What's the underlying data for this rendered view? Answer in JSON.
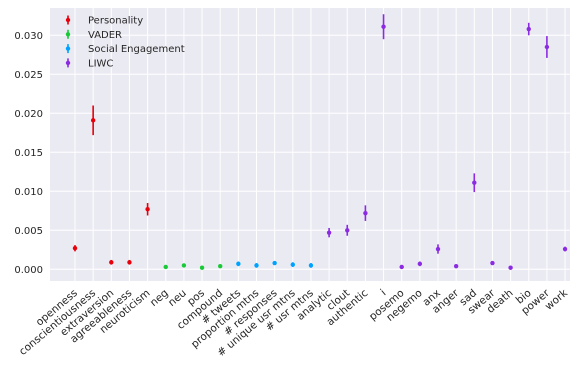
{
  "chart_data": {
    "type": "scatter",
    "title": "",
    "xlabel": "",
    "ylabel": "",
    "ylim": [
      -0.0015,
      0.0335
    ],
    "yticks": [
      "0.000",
      "0.005",
      "0.010",
      "0.015",
      "0.020",
      "0.025",
      "0.030"
    ],
    "grid": true,
    "legend_position": "top-left",
    "categories": [
      "openness",
      "conscientiousness",
      "extraversion",
      "agreeableness",
      "neuroticism",
      "neg",
      "neu",
      "pos",
      "compound",
      "# tweets",
      "proportion mtns",
      "# responses",
      "# unique usr mtns",
      "# usr mtns",
      "analytic",
      "clout",
      "authentic",
      "i",
      "posemo",
      "negemo",
      "anx",
      "anger",
      "sad",
      "swear",
      "death",
      "bio",
      "power",
      "work"
    ],
    "series": [
      {
        "name": "Personality",
        "color": "#e8000b",
        "points": [
          {
            "x": "openness",
            "y": 0.0027,
            "err": 0.0004
          },
          {
            "x": "conscientiousness",
            "y": 0.0191,
            "err": 0.0019
          },
          {
            "x": "extraversion",
            "y": 0.0009,
            "err": 0.0003
          },
          {
            "x": "agreeableness",
            "y": 0.0009,
            "err": 0.0003
          },
          {
            "x": "neuroticism",
            "y": 0.0077,
            "err": 0.0008
          }
        ]
      },
      {
        "name": "VADER",
        "color": "#1ac938",
        "points": [
          {
            "x": "neg",
            "y": 0.0003,
            "err": 0.0002
          },
          {
            "x": "neu",
            "y": 0.0005,
            "err": 0.0002
          },
          {
            "x": "pos",
            "y": 0.0002,
            "err": 0.0001
          },
          {
            "x": "compound",
            "y": 0.0004,
            "err": 0.0002
          }
        ]
      },
      {
        "name": "Social Engagement",
        "color": "#00a2ff",
        "points": [
          {
            "x": "# tweets",
            "y": 0.0007,
            "err": 0.0003
          },
          {
            "x": "proportion mtns",
            "y": 0.0005,
            "err": 0.0003
          },
          {
            "x": "# responses",
            "y": 0.0008,
            "err": 0.0002
          },
          {
            "x": "# unique usr mtns",
            "y": 0.0006,
            "err": 0.0003
          },
          {
            "x": "# usr mtns",
            "y": 0.0005,
            "err": 0.0003
          }
        ]
      },
      {
        "name": "LIWC",
        "color": "#8b2be2",
        "points": [
          {
            "x": "analytic",
            "y": 0.0047,
            "err": 0.0006
          },
          {
            "x": "clout",
            "y": 0.005,
            "err": 0.0007
          },
          {
            "x": "authentic",
            "y": 0.0072,
            "err": 0.001
          },
          {
            "x": "i",
            "y": 0.0311,
            "err": 0.0016
          },
          {
            "x": "posemo",
            "y": 0.0003,
            "err": 0.0001
          },
          {
            "x": "negemo",
            "y": 0.0007,
            "err": 0.0003
          },
          {
            "x": "anx",
            "y": 0.0026,
            "err": 0.0006
          },
          {
            "x": "anger",
            "y": 0.0004,
            "err": 0.0001
          },
          {
            "x": "sad",
            "y": 0.0111,
            "err": 0.0012
          },
          {
            "x": "swear",
            "y": 0.0008,
            "err": 0.0002
          },
          {
            "x": "death",
            "y": 0.0002,
            "err": 0.0001
          },
          {
            "x": "bio",
            "y": 0.0308,
            "err": 0.0008
          },
          {
            "x": "power",
            "y": 0.0285,
            "err": 0.0014
          },
          {
            "x": "work",
            "y": 0.0026,
            "err": 0.0003
          }
        ]
      }
    ]
  }
}
